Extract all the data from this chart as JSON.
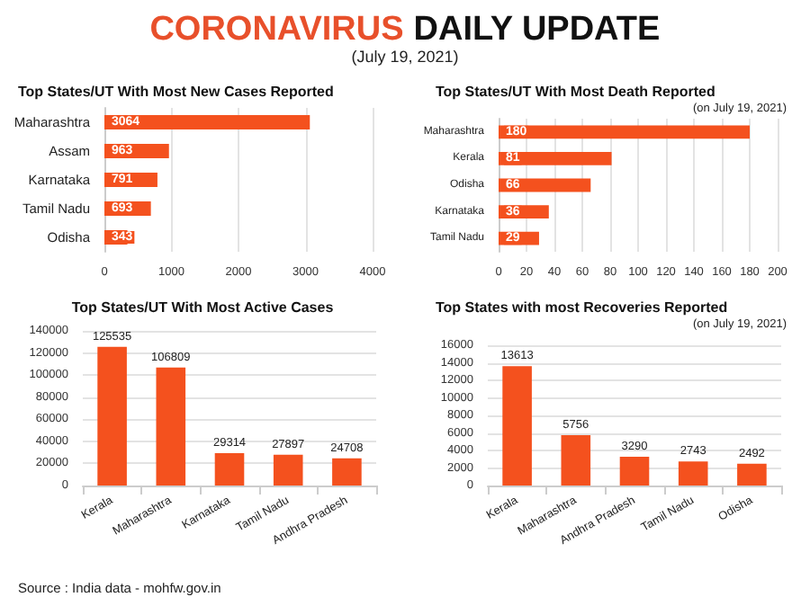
{
  "chart_data": [
    {
      "type": "other",
      "title": "CORONAVIRUS DAILY UPDATE",
      "subtitle": "(July 19, 2021)",
      "annotations": [
        "Source : India data - mohfw.gov.in"
      ]
    },
    {
      "type": "bar",
      "orientation": "horizontal",
      "title": "Top States/UT With Most New Cases Reported",
      "categories": [
        "Maharashtra",
        "Assam",
        "Karnataka",
        "Tamil Nadu",
        "Odisha"
      ],
      "values": [
        3064,
        963,
        791,
        693,
        343
      ],
      "color": "#f4511e",
      "xlim": [
        0,
        4000
      ],
      "xticks": [
        0,
        1000,
        2000,
        3000,
        4000
      ],
      "grid": true,
      "data_labels": true
    },
    {
      "type": "bar",
      "orientation": "horizontal",
      "title": "Top States/UT With Most Death Reported",
      "subtitle": "(on July 19, 2021)",
      "categories": [
        "Maharashtra",
        "Kerala",
        "Odisha",
        "Karnataka",
        "Tamil Nadu"
      ],
      "values": [
        180,
        81,
        66,
        36,
        29
      ],
      "color": "#f4511e",
      "xlim": [
        0,
        200
      ],
      "xticks": [
        0,
        20,
        40,
        60,
        80,
        100,
        120,
        140,
        160,
        180,
        200
      ],
      "grid": true,
      "data_labels": true
    },
    {
      "type": "bar",
      "title": "Top States/UT With Most Active Cases",
      "categories": [
        "Kerala",
        "Maharashtra",
        "Karnataka",
        "Tamil Nadu",
        "Andhra Pradesh"
      ],
      "values": [
        125535,
        106809,
        29314,
        27897,
        24708
      ],
      "color": "#f4511e",
      "ylim": [
        0,
        140000
      ],
      "yticks": [
        0,
        20000,
        40000,
        60000,
        80000,
        100000,
        120000,
        140000
      ],
      "grid": true,
      "data_labels": true
    },
    {
      "type": "bar",
      "title": "Top States with most Recoveries Reported",
      "subtitle": "(on July 19, 2021)",
      "categories": [
        "Kerala",
        "Maharashtra",
        "Andhra Pradesh",
        "Tamil Nadu",
        "Odisha"
      ],
      "values": [
        13613,
        5756,
        3290,
        2743,
        2492
      ],
      "color": "#f4511e",
      "ylim": [
        0,
        16000
      ],
      "yticks": [
        0,
        2000,
        4000,
        6000,
        8000,
        10000,
        12000,
        14000,
        16000
      ],
      "grid": true,
      "data_labels": true
    }
  ]
}
